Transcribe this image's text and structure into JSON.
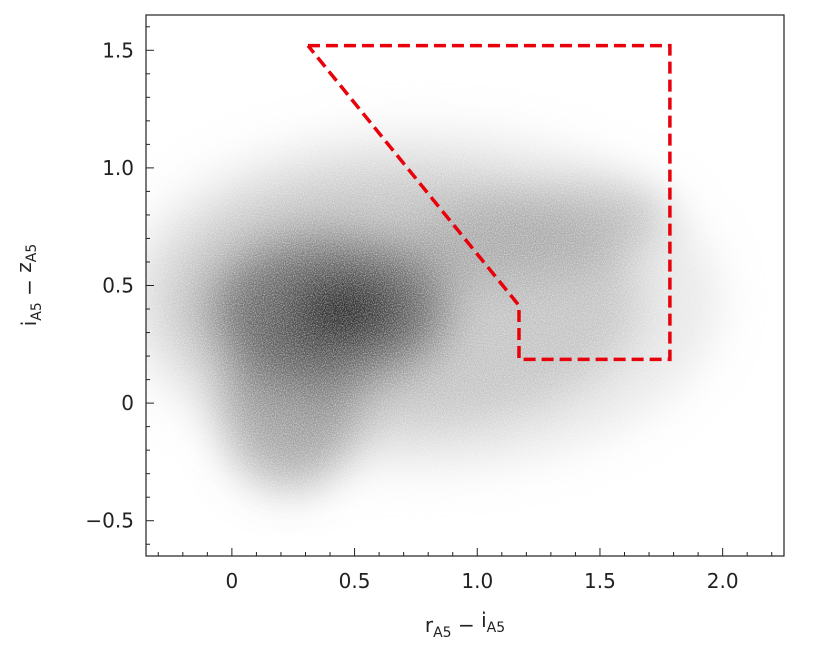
{
  "chart_data": {
    "type": "scatter",
    "xlabel": [
      "r",
      "A5",
      " − ",
      "i",
      "A5"
    ],
    "ylabel": [
      "i",
      "A5",
      " − ",
      "z",
      "A5"
    ],
    "xlim": [
      -0.35,
      2.25
    ],
    "ylim": [
      -0.65,
      1.65
    ],
    "xticks": [
      0,
      0.5,
      {
        "value": 1,
        "label": "1.0"
      },
      1.5,
      {
        "value": 2,
        "label": "2.0"
      }
    ],
    "yticks": [
      {
        "value": -0.5,
        "label": "−0.5"
      },
      0,
      0.5,
      {
        "value": 1,
        "label": "1.0"
      },
      1.5
    ],
    "xminorticks": [
      -0.3,
      -0.2,
      -0.1,
      0.1,
      0.2,
      0.3,
      0.4,
      0.6,
      0.7,
      0.8,
      0.9,
      1.1,
      1.2,
      1.3,
      1.4,
      1.6,
      1.7,
      1.8,
      1.9,
      2.1,
      2.2
    ],
    "yminorticks": [
      -0.6,
      -0.4,
      -0.3,
      -0.2,
      -0.1,
      0.1,
      0.2,
      0.3,
      0.4,
      0.6,
      0.7,
      0.8,
      0.9,
      1.1,
      1.2,
      1.3,
      1.4,
      1.6
    ],
    "selection_region": {
      "x": [
        0.31,
        1.785,
        1.785,
        1.17,
        1.17,
        0.31
      ],
      "y": [
        1.52,
        1.52,
        0.186,
        0.186,
        0.415,
        1.52
      ],
      "color": "#e8000b",
      "linestyle": "dashed"
    },
    "grid": false
  }
}
